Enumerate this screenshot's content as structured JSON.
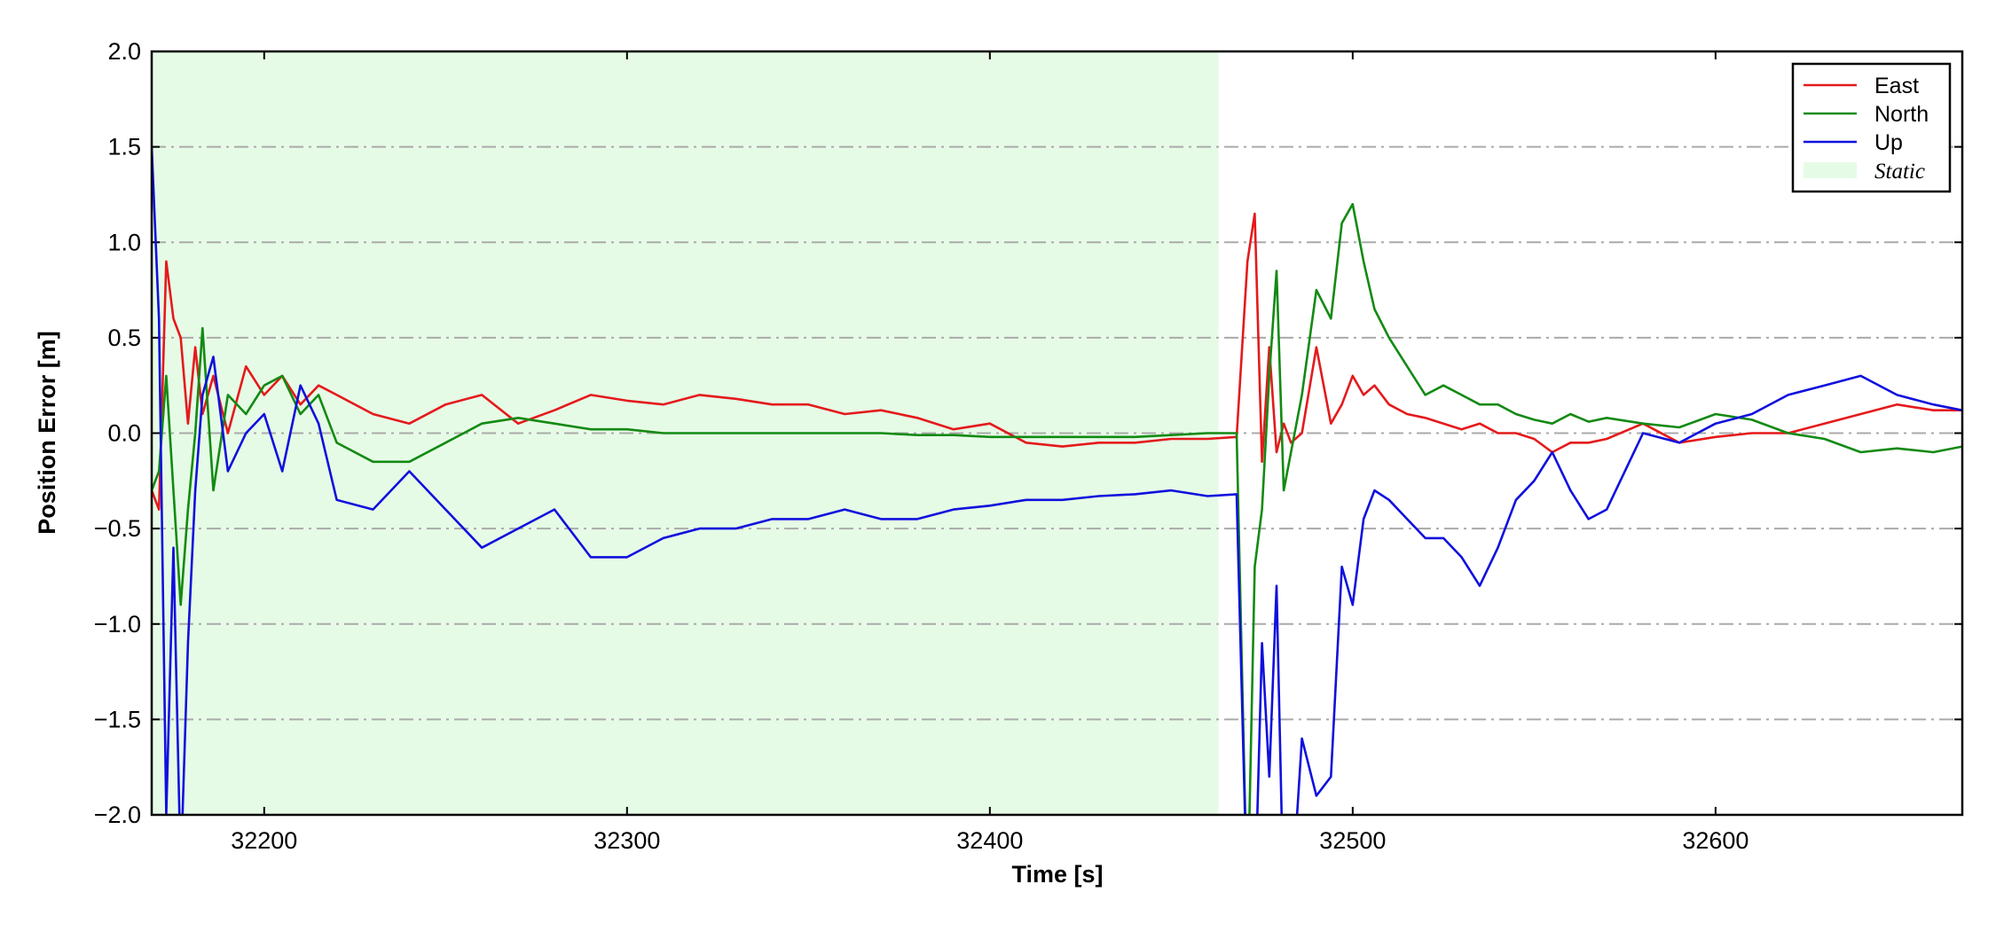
{
  "chart_data": {
    "type": "line",
    "xlabel": "Time [s]",
    "ylabel": "Position Error [m]",
    "xlim": [
      32169,
      32668
    ],
    "ylim": [
      -2,
      2
    ],
    "xticks": [
      32200,
      32300,
      32400,
      32500,
      32600
    ],
    "yticks": [
      {
        "value": -2,
        "label": "−2.0"
      },
      {
        "value": -1.5,
        "label": "−1.5"
      },
      {
        "value": -1,
        "label": "−1.0"
      },
      {
        "value": -0.5,
        "label": "−0.5"
      },
      {
        "value": 0,
        "label": "0.0"
      },
      {
        "value": 0.5,
        "label": "0.5"
      },
      {
        "value": 1,
        "label": "1.0"
      },
      {
        "value": 1.5,
        "label": "1.5"
      },
      {
        "value": 2,
        "label": "2.0"
      }
    ],
    "grid": true,
    "legend_loc": "upper right",
    "region": {
      "name": "Static",
      "xmin": 32169,
      "xmax": 32463,
      "color": "#e6fbe6"
    },
    "x": [
      32169,
      32171,
      32173,
      32175,
      32177,
      32179,
      32181,
      32183,
      32186,
      32190,
      32195,
      32200,
      32205,
      32210,
      32215,
      32220,
      32230,
      32240,
      32250,
      32260,
      32270,
      32280,
      32290,
      32300,
      32310,
      32320,
      32330,
      32340,
      32350,
      32360,
      32370,
      32380,
      32390,
      32400,
      32410,
      32420,
      32430,
      32440,
      32450,
      32460,
      32468,
      32471,
      32473,
      32475,
      32477,
      32479,
      32481,
      32483,
      32486,
      32490,
      32494,
      32497,
      32500,
      32503,
      32506,
      32510,
      32515,
      32520,
      32525,
      32530,
      32535,
      32540,
      32545,
      32550,
      32555,
      32560,
      32565,
      32570,
      32580,
      32590,
      32600,
      32610,
      32620,
      32630,
      32640,
      32650,
      32660,
      32668
    ],
    "series": [
      {
        "name": "East",
        "color": "#e41a1c",
        "values": [
          -0.3,
          -0.4,
          0.9,
          0.6,
          0.5,
          0.05,
          0.45,
          0.1,
          0.3,
          0.0,
          0.35,
          0.2,
          0.3,
          0.15,
          0.25,
          0.2,
          0.1,
          0.05,
          0.15,
          0.2,
          0.05,
          0.12,
          0.2,
          0.17,
          0.15,
          0.2,
          0.18,
          0.15,
          0.15,
          0.1,
          0.12,
          0.08,
          0.02,
          0.05,
          -0.05,
          -0.07,
          -0.05,
          -0.05,
          -0.03,
          -0.03,
          -0.02,
          0.9,
          1.15,
          -0.15,
          0.45,
          -0.1,
          0.05,
          -0.05,
          0.0,
          0.45,
          0.05,
          0.15,
          0.3,
          0.2,
          0.25,
          0.15,
          0.1,
          0.08,
          0.05,
          0.02,
          0.05,
          0.0,
          0.0,
          -0.03,
          -0.1,
          -0.05,
          -0.05,
          -0.03,
          0.05,
          -0.05,
          -0.02,
          0.0,
          0.0,
          0.05,
          0.1,
          0.15,
          0.12,
          0.12
        ]
      },
      {
        "name": "North",
        "color": "#138a13",
        "values": [
          -0.3,
          -0.2,
          0.3,
          -0.3,
          -0.9,
          -0.4,
          0.0,
          0.55,
          -0.3,
          0.2,
          0.1,
          0.25,
          0.3,
          0.1,
          0.2,
          -0.05,
          -0.15,
          -0.15,
          -0.05,
          0.05,
          0.08,
          0.05,
          0.02,
          0.02,
          0.0,
          0.0,
          0.0,
          0.0,
          0.0,
          0.0,
          0.0,
          -0.01,
          -0.01,
          -0.02,
          -0.02,
          -0.02,
          -0.02,
          -0.02,
          -0.01,
          0.0,
          0.0,
          -2.5,
          -0.7,
          -0.4,
          0.3,
          0.85,
          -0.3,
          -0.1,
          0.2,
          0.75,
          0.6,
          1.1,
          1.2,
          0.9,
          0.65,
          0.5,
          0.35,
          0.2,
          0.25,
          0.2,
          0.15,
          0.15,
          0.1,
          0.07,
          0.05,
          0.1,
          0.06,
          0.08,
          0.05,
          0.03,
          0.1,
          0.07,
          0.0,
          -0.03,
          -0.1,
          -0.08,
          -0.1,
          -0.07
        ]
      },
      {
        "name": "Up",
        "color": "#1010dd",
        "values": [
          1.5,
          0.6,
          -2.0,
          -0.6,
          -2.3,
          -1.1,
          -0.3,
          0.2,
          0.4,
          -0.2,
          0.0,
          0.1,
          -0.2,
          0.25,
          0.05,
          -0.35,
          -0.4,
          -0.2,
          -0.4,
          -0.6,
          -0.5,
          -0.4,
          -0.65,
          -0.65,
          -0.55,
          -0.5,
          -0.5,
          -0.45,
          -0.45,
          -0.4,
          -0.45,
          -0.45,
          -0.4,
          -0.38,
          -0.35,
          -0.35,
          -0.33,
          -0.32,
          -0.3,
          -0.33,
          -0.32,
          -2.5,
          -2.5,
          -1.1,
          -1.8,
          -0.8,
          -2.5,
          -2.5,
          -1.6,
          -1.9,
          -1.8,
          -0.7,
          -0.9,
          -0.45,
          -0.3,
          -0.35,
          -0.45,
          -0.55,
          -0.55,
          -0.65,
          -0.8,
          -0.6,
          -0.35,
          -0.25,
          -0.1,
          -0.3,
          -0.45,
          -0.4,
          0.0,
          -0.05,
          0.05,
          0.1,
          0.2,
          0.25,
          0.3,
          0.2,
          0.15,
          0.12
        ]
      }
    ]
  }
}
